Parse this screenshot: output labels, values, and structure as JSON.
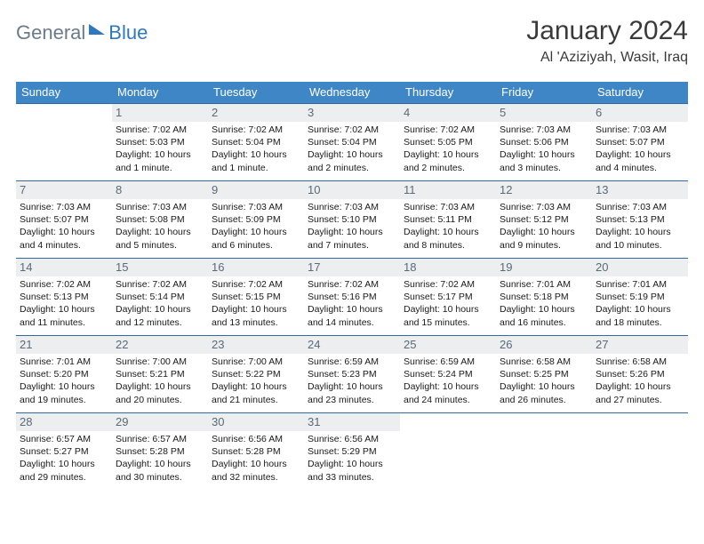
{
  "logo": {
    "word1": "General",
    "word2": "Blue"
  },
  "title": {
    "monthyear": "January 2024",
    "location": "Al 'Aziziyah, Wasit, Iraq"
  },
  "colors": {
    "header_bg": "#3f86c7",
    "header_text": "#ffffff",
    "row_border": "#2f6aa3",
    "daynum_bg": "#eceef0",
    "daynum_text": "#5a6a78",
    "body_text": "#1a1a1a",
    "logo_grey": "#6b7b8a",
    "logo_blue": "#2f78bd"
  },
  "weekdays": [
    "Sunday",
    "Monday",
    "Tuesday",
    "Wednesday",
    "Thursday",
    "Friday",
    "Saturday"
  ],
  "start_offset": 1,
  "days_in_month": 31,
  "days": {
    "1": {
      "sr": "7:02 AM",
      "ss": "5:03 PM",
      "dl": "10 hours and 1 minute."
    },
    "2": {
      "sr": "7:02 AM",
      "ss": "5:04 PM",
      "dl": "10 hours and 1 minute."
    },
    "3": {
      "sr": "7:02 AM",
      "ss": "5:04 PM",
      "dl": "10 hours and 2 minutes."
    },
    "4": {
      "sr": "7:02 AM",
      "ss": "5:05 PM",
      "dl": "10 hours and 2 minutes."
    },
    "5": {
      "sr": "7:03 AM",
      "ss": "5:06 PM",
      "dl": "10 hours and 3 minutes."
    },
    "6": {
      "sr": "7:03 AM",
      "ss": "5:07 PM",
      "dl": "10 hours and 4 minutes."
    },
    "7": {
      "sr": "7:03 AM",
      "ss": "5:07 PM",
      "dl": "10 hours and 4 minutes."
    },
    "8": {
      "sr": "7:03 AM",
      "ss": "5:08 PM",
      "dl": "10 hours and 5 minutes."
    },
    "9": {
      "sr": "7:03 AM",
      "ss": "5:09 PM",
      "dl": "10 hours and 6 minutes."
    },
    "10": {
      "sr": "7:03 AM",
      "ss": "5:10 PM",
      "dl": "10 hours and 7 minutes."
    },
    "11": {
      "sr": "7:03 AM",
      "ss": "5:11 PM",
      "dl": "10 hours and 8 minutes."
    },
    "12": {
      "sr": "7:03 AM",
      "ss": "5:12 PM",
      "dl": "10 hours and 9 minutes."
    },
    "13": {
      "sr": "7:03 AM",
      "ss": "5:13 PM",
      "dl": "10 hours and 10 minutes."
    },
    "14": {
      "sr": "7:02 AM",
      "ss": "5:13 PM",
      "dl": "10 hours and 11 minutes."
    },
    "15": {
      "sr": "7:02 AM",
      "ss": "5:14 PM",
      "dl": "10 hours and 12 minutes."
    },
    "16": {
      "sr": "7:02 AM",
      "ss": "5:15 PM",
      "dl": "10 hours and 13 minutes."
    },
    "17": {
      "sr": "7:02 AM",
      "ss": "5:16 PM",
      "dl": "10 hours and 14 minutes."
    },
    "18": {
      "sr": "7:02 AM",
      "ss": "5:17 PM",
      "dl": "10 hours and 15 minutes."
    },
    "19": {
      "sr": "7:01 AM",
      "ss": "5:18 PM",
      "dl": "10 hours and 16 minutes."
    },
    "20": {
      "sr": "7:01 AM",
      "ss": "5:19 PM",
      "dl": "10 hours and 18 minutes."
    },
    "21": {
      "sr": "7:01 AM",
      "ss": "5:20 PM",
      "dl": "10 hours and 19 minutes."
    },
    "22": {
      "sr": "7:00 AM",
      "ss": "5:21 PM",
      "dl": "10 hours and 20 minutes."
    },
    "23": {
      "sr": "7:00 AM",
      "ss": "5:22 PM",
      "dl": "10 hours and 21 minutes."
    },
    "24": {
      "sr": "6:59 AM",
      "ss": "5:23 PM",
      "dl": "10 hours and 23 minutes."
    },
    "25": {
      "sr": "6:59 AM",
      "ss": "5:24 PM",
      "dl": "10 hours and 24 minutes."
    },
    "26": {
      "sr": "6:58 AM",
      "ss": "5:25 PM",
      "dl": "10 hours and 26 minutes."
    },
    "27": {
      "sr": "6:58 AM",
      "ss": "5:26 PM",
      "dl": "10 hours and 27 minutes."
    },
    "28": {
      "sr": "6:57 AM",
      "ss": "5:27 PM",
      "dl": "10 hours and 29 minutes."
    },
    "29": {
      "sr": "6:57 AM",
      "ss": "5:28 PM",
      "dl": "10 hours and 30 minutes."
    },
    "30": {
      "sr": "6:56 AM",
      "ss": "5:28 PM",
      "dl": "10 hours and 32 minutes."
    },
    "31": {
      "sr": "6:56 AM",
      "ss": "5:29 PM",
      "dl": "10 hours and 33 minutes."
    }
  },
  "labels": {
    "sunrise": "Sunrise: ",
    "sunset": "Sunset: ",
    "daylight": "Daylight: "
  }
}
